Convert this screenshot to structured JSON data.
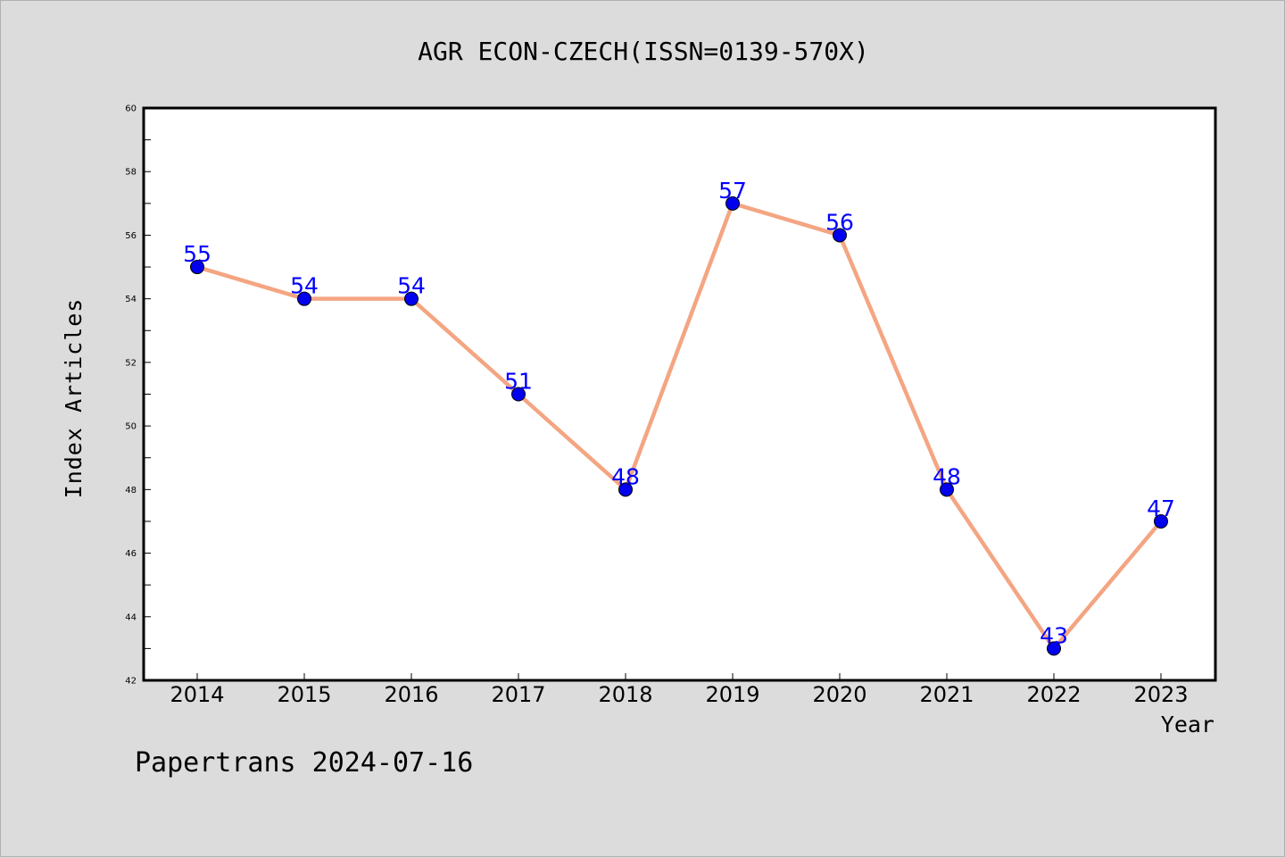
{
  "chart_data": {
    "type": "line",
    "title": "AGR ECON-CZECH(ISSN=0139-570X)",
    "xlabel": "Year",
    "ylabel": "Index Articles",
    "x": [
      "2014",
      "2015",
      "2016",
      "2017",
      "2018",
      "2019",
      "2020",
      "2021",
      "2022",
      "2023"
    ],
    "series": [
      {
        "values": [
          55,
          54,
          54,
          51,
          48,
          57,
          56,
          48,
          43,
          47
        ]
      }
    ],
    "ylim": [
      42,
      60
    ],
    "yticks": [
      42,
      44,
      46,
      48,
      50,
      52,
      54,
      56,
      58,
      60
    ],
    "grid": false,
    "colors": {
      "line": "#f4a582",
      "marker": "#0000ee",
      "label": "#0000ff",
      "plot_bg": "#ffffff",
      "page_bg": "#dcdcdc"
    }
  },
  "footer": {
    "text": "Papertrans 2024-07-16"
  }
}
